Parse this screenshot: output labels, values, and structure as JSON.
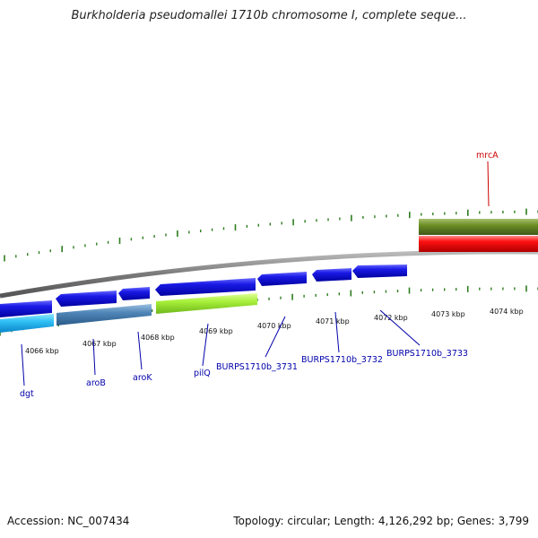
{
  "title": "Burkholderia pseudomallei 1710b chromosome I, complete seque...",
  "footer": {
    "accession": "Accession: NC_007434",
    "summary": "Topology: circular; Length: 4,126,292 bp; Genes: 3,799"
  },
  "colors": {
    "backbone": "#8a8a8a",
    "tick": "#2e7d1f",
    "forward_gene": "#1010e0",
    "label_default": "#0000aa",
    "label_mrcA": "#cc0000"
  },
  "scale_labels": [
    "4066 kbp",
    "4067 kbp",
    "4068 kbp",
    "4069 kbp",
    "4070 kbp",
    "4071 kbp",
    "4072 kbp",
    "4073 kbp",
    "4074 kbp"
  ],
  "genes": [
    {
      "label": "mrcA",
      "color": "#cc0000"
    },
    {
      "label": "dgt",
      "color": "#0000aa"
    },
    {
      "label": "aroB",
      "color": "#0000aa"
    },
    {
      "label": "aroK",
      "color": "#0000aa"
    },
    {
      "label": "pilQ",
      "color": "#0000aa"
    },
    {
      "label": "BURPS1710b_3731",
      "color": "#0000aa"
    },
    {
      "label": "BURPS1710b_3732",
      "color": "#0000aa"
    },
    {
      "label": "BURPS1710b_3733",
      "color": "#0000aa"
    }
  ]
}
